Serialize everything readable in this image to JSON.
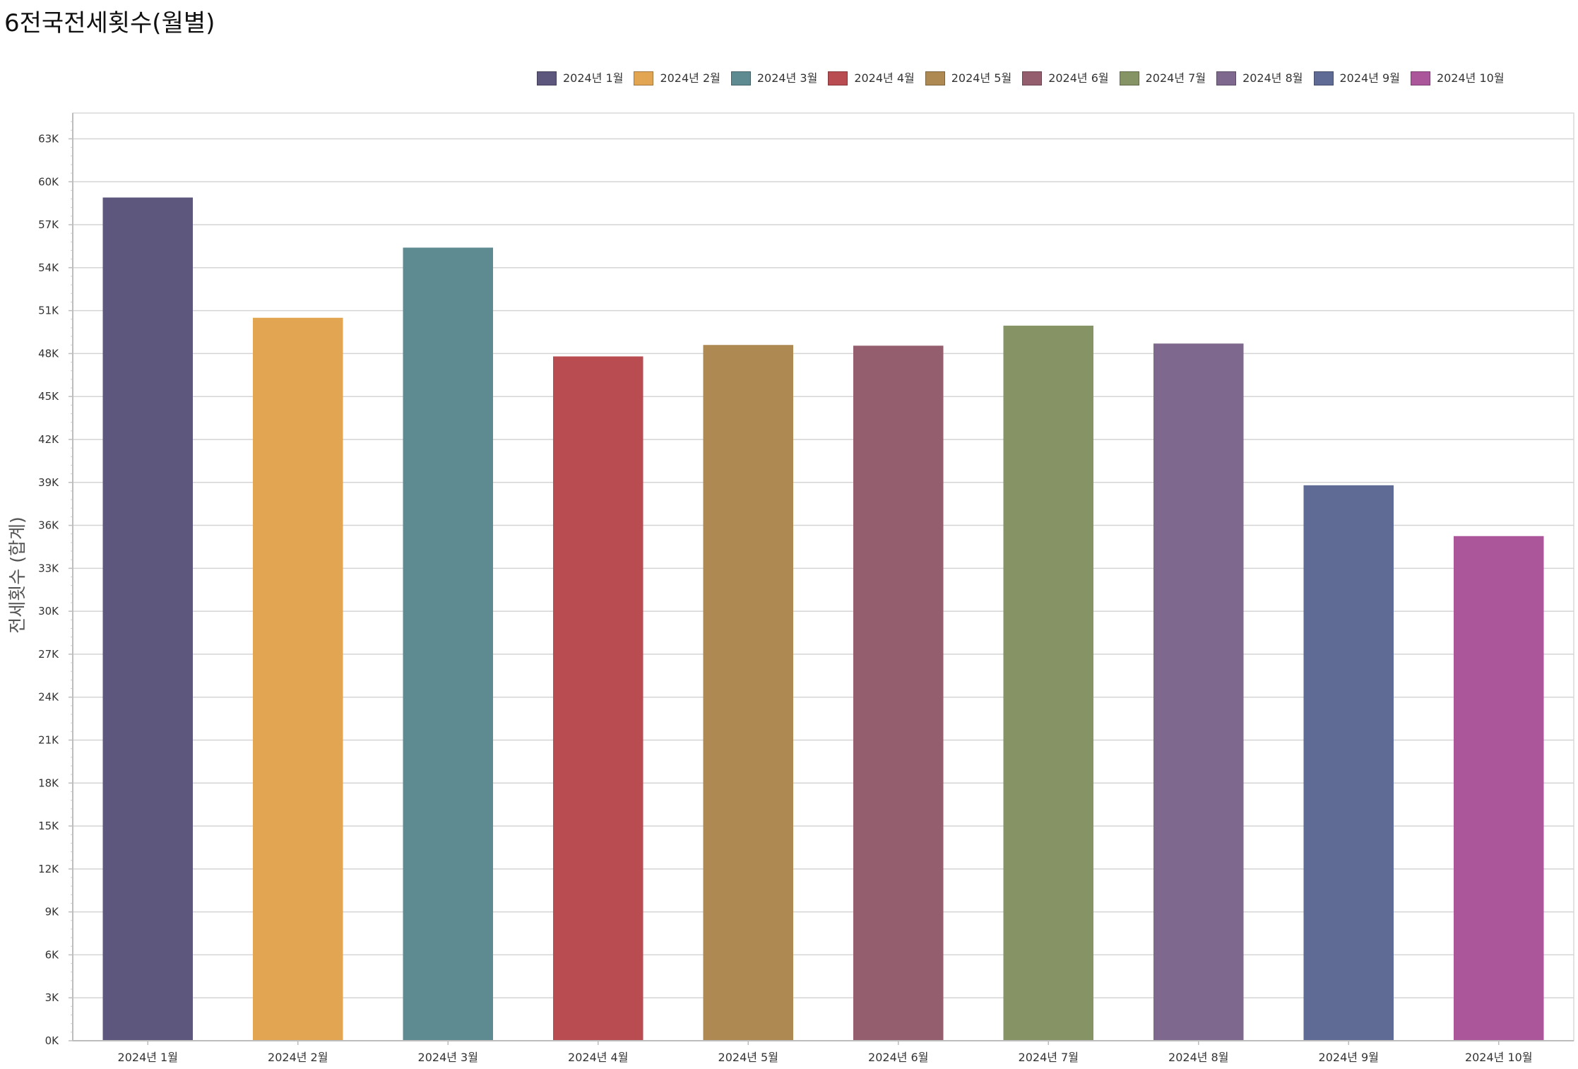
{
  "title": "6전국전세횟수(월별)",
  "chart_data": {
    "type": "bar",
    "title": "6전국전세횟수(월별)",
    "xlabel": "",
    "ylabel": "전세횟수 (합계)",
    "categories": [
      "2024년 1월",
      "2024년 2월",
      "2024년 3월",
      "2024년 4월",
      "2024년 5월",
      "2024년 6월",
      "2024년 7월",
      "2024년 8월",
      "2024년 9월",
      "2024년 10월"
    ],
    "values": [
      58900,
      50500,
      55400,
      47800,
      48600,
      48550,
      49950,
      48700,
      38800,
      35250
    ],
    "colors": [
      "#5e577d",
      "#e2a652",
      "#5e8a92",
      "#b94c50",
      "#ae8a52",
      "#955e6e",
      "#869465",
      "#7f688d",
      "#5f6b95",
      "#ab569b"
    ],
    "ylim": [
      0,
      64800
    ],
    "yticks": [
      0,
      3000,
      6000,
      9000,
      12000,
      15000,
      18000,
      21000,
      24000,
      27000,
      30000,
      33000,
      36000,
      39000,
      42000,
      45000,
      48000,
      51000,
      54000,
      57000,
      60000,
      63000
    ],
    "ytick_labels": [
      "0K",
      "3K",
      "6K",
      "9K",
      "12K",
      "15K",
      "18K",
      "21K",
      "24K",
      "27K",
      "30K",
      "33K",
      "36K",
      "39K",
      "42K",
      "45K",
      "48K",
      "51K",
      "54K",
      "57K",
      "60K",
      "63K"
    ],
    "legend_position": "top-right",
    "grid": true
  }
}
